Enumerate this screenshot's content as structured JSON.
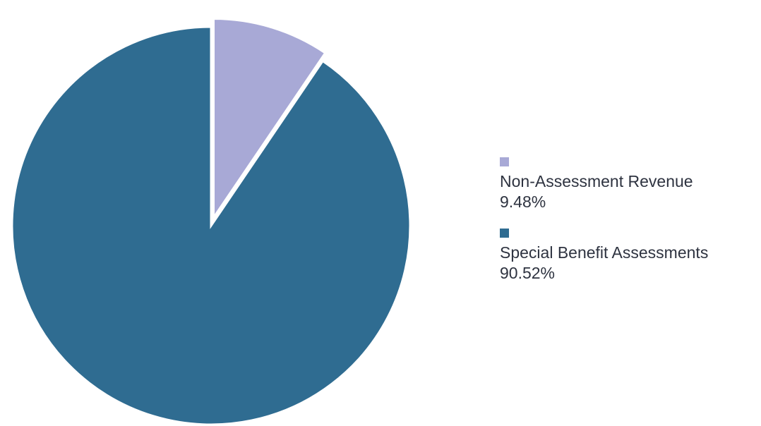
{
  "chart_data": {
    "type": "pie",
    "title": "",
    "start_angle_deg": 0,
    "direction": "clockwise",
    "exploded": [
      "Non-Assessment Revenue"
    ],
    "legend_position": "right",
    "slices": [
      {
        "name": "Non-Assessment Revenue",
        "value": 9.48,
        "value_label": "9.48%",
        "color": "#a8a9d6"
      },
      {
        "name": "Special Benefit Assessments",
        "value": 90.52,
        "value_label": "90.52%",
        "color": "#2f6c91"
      }
    ]
  }
}
